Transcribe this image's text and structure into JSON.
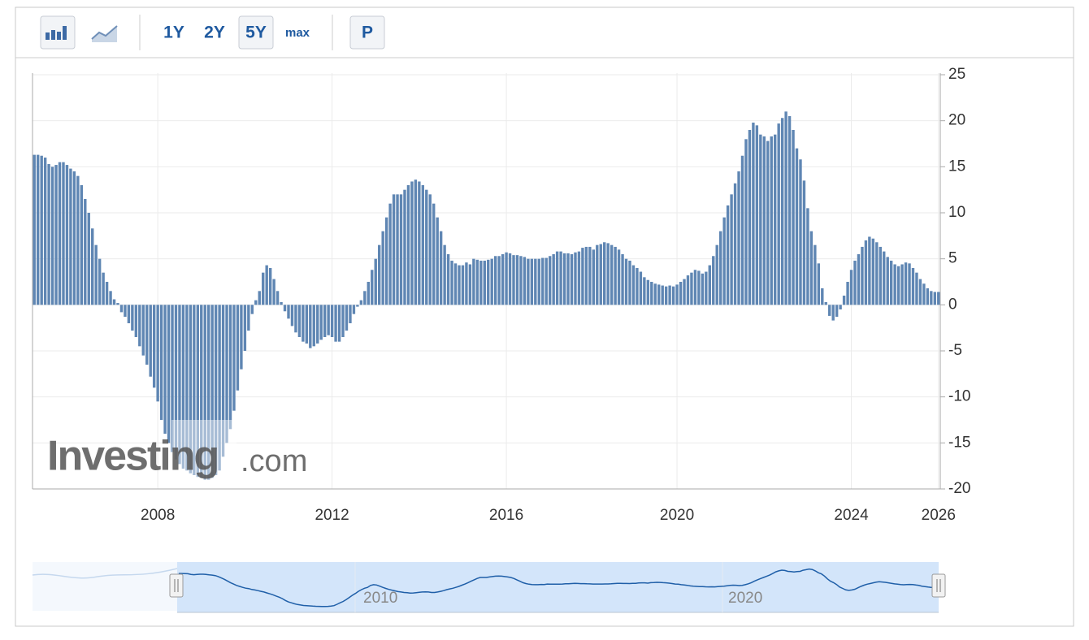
{
  "toolbar": {
    "ranges": [
      "1Y",
      "2Y",
      "5Y",
      "max"
    ],
    "period": "P"
  },
  "watermark": [
    "Investing",
    ".com"
  ],
  "navigator": {
    "labels": [
      "2010",
      "2020"
    ]
  },
  "chart_data": {
    "type": "bar",
    "color": "#5f86b3",
    "grid": true,
    "y_axis_side": "right",
    "ylim": [
      -20,
      25
    ],
    "yticks": [
      -20,
      -15,
      -10,
      -5,
      0,
      5,
      10,
      15,
      20,
      25
    ],
    "categories": [
      null,
      null,
      null,
      null,
      null,
      null,
      null,
      null,
      null,
      null,
      null,
      null,
      null,
      null,
      null,
      null,
      null,
      null,
      null,
      null,
      null,
      null,
      null,
      null,
      null,
      null,
      null,
      null,
      null,
      null,
      null,
      null,
      null,
      null,
      "2008",
      null,
      null,
      null,
      null,
      null,
      null,
      null,
      null,
      null,
      null,
      null,
      null,
      null,
      null,
      null,
      null,
      null,
      null,
      null,
      null,
      null,
      null,
      null,
      null,
      null,
      null,
      null,
      null,
      null,
      null,
      null,
      null,
      null,
      null,
      null,
      null,
      null,
      null,
      null,
      null,
      null,
      null,
      null,
      null,
      null,
      null,
      null,
      "2012",
      null,
      null,
      null,
      null,
      null,
      null,
      null,
      null,
      null,
      null,
      null,
      null,
      null,
      null,
      null,
      null,
      null,
      null,
      null,
      null,
      null,
      null,
      null,
      null,
      null,
      null,
      null,
      null,
      null,
      null,
      null,
      null,
      null,
      null,
      null,
      null,
      null,
      null,
      null,
      null,
      null,
      null,
      null,
      null,
      null,
      null,
      null,
      "2016",
      null,
      null,
      null,
      null,
      null,
      null,
      null,
      null,
      null,
      null,
      null,
      null,
      null,
      null,
      null,
      null,
      null,
      null,
      null,
      null,
      null,
      null,
      null,
      null,
      null,
      null,
      null,
      null,
      null,
      null,
      null,
      null,
      null,
      null,
      null,
      null,
      null,
      null,
      null,
      null,
      null,
      null,
      null,
      null,
      null,
      null,
      "2020",
      null,
      null,
      null,
      null,
      null,
      null,
      null,
      null,
      null,
      null,
      null,
      null,
      null,
      null,
      null,
      null,
      null,
      null,
      null,
      null,
      null,
      null,
      null,
      null,
      null,
      null,
      null,
      null,
      null,
      null,
      null,
      null,
      null,
      null,
      null,
      null,
      null,
      null,
      null,
      null,
      null,
      null,
      null,
      null,
      null,
      null,
      null,
      "2024",
      null,
      null,
      null,
      null,
      null,
      null,
      null,
      null,
      null,
      null,
      null,
      null,
      null,
      null,
      null,
      null,
      null,
      null,
      null,
      null,
      null,
      null,
      null,
      "2026"
    ],
    "values": [
      16.3,
      16.3,
      16.2,
      16.0,
      15.3,
      15.0,
      15.2,
      15.5,
      15.5,
      15.2,
      14.8,
      14.5,
      14.0,
      13.0,
      11.5,
      10.0,
      8.3,
      6.5,
      5.0,
      3.5,
      2.5,
      1.5,
      0.6,
      0.2,
      -0.8,
      -1.3,
      -2.0,
      -2.8,
      -3.5,
      -4.5,
      -5.5,
      -6.5,
      -7.8,
      -9.0,
      -10.5,
      -12.5,
      -14.0,
      -15.0,
      -16.0,
      -16.8,
      -17.3,
      -17.8,
      -18.0,
      -18.3,
      -18.5,
      -18.7,
      -18.8,
      -19.0,
      -19.0,
      -18.8,
      -18.5,
      -18.0,
      -16.5,
      -15.0,
      -13.5,
      -11.5,
      -9.3,
      -7.0,
      -5.0,
      -2.8,
      -1.0,
      0.5,
      1.5,
      3.5,
      4.3,
      4.0,
      2.8,
      1.5,
      0.3,
      -0.7,
      -1.5,
      -2.3,
      -3.0,
      -3.5,
      -4.0,
      -4.2,
      -4.7,
      -4.5,
      -4.2,
      -3.8,
      -3.5,
      -3.3,
      -3.5,
      -4.0,
      -4.0,
      -3.5,
      -2.8,
      -2.0,
      -1.0,
      -0.2,
      0.5,
      1.5,
      2.5,
      3.8,
      5.0,
      6.5,
      8.0,
      9.5,
      11.0,
      12.0,
      12.0,
      12.0,
      12.5,
      13.0,
      13.4,
      13.6,
      13.4,
      13.0,
      12.5,
      12.0,
      11.0,
      9.5,
      8.0,
      6.5,
      5.5,
      4.8,
      4.5,
      4.3,
      4.3,
      4.6,
      4.4,
      5.0,
      4.9,
      4.8,
      4.8,
      4.9,
      5.0,
      5.3,
      5.3,
      5.5,
      5.7,
      5.6,
      5.4,
      5.4,
      5.3,
      5.2,
      5.0,
      5.0,
      5.0,
      5.0,
      5.1,
      5.1,
      5.3,
      5.5,
      5.8,
      5.8,
      5.6,
      5.6,
      5.5,
      5.7,
      5.8,
      6.2,
      6.3,
      6.3,
      6.0,
      6.5,
      6.6,
      6.8,
      6.7,
      6.5,
      6.3,
      6.0,
      5.5,
      5.0,
      4.8,
      4.3,
      4.0,
      3.6,
      3.0,
      2.7,
      2.5,
      2.3,
      2.2,
      2.1,
      2.0,
      2.1,
      2.0,
      2.2,
      2.5,
      2.8,
      3.2,
      3.5,
      3.8,
      3.7,
      3.4,
      3.6,
      4.3,
      5.3,
      6.5,
      8.0,
      9.5,
      10.8,
      12.0,
      13.2,
      14.5,
      16.2,
      18.0,
      19.0,
      19.8,
      19.5,
      18.5,
      18.3,
      17.8,
      18.3,
      18.5,
      19.7,
      20.3,
      21.0,
      20.5,
      19.0,
      17.0,
      15.8,
      13.5,
      10.5,
      8.0,
      6.5,
      4.5,
      1.8,
      0.3,
      -1.2,
      -1.7,
      -1.3,
      -0.5,
      1.0,
      2.5,
      3.8,
      4.8,
      5.5,
      6.3,
      7.0,
      7.4,
      7.2,
      6.8,
      6.3,
      5.8,
      5.2,
      4.8,
      4.4,
      4.2,
      4.4,
      4.6,
      4.5,
      4.0,
      3.5,
      2.8,
      2.3,
      1.8,
      1.5,
      1.4,
      1.4
    ]
  }
}
